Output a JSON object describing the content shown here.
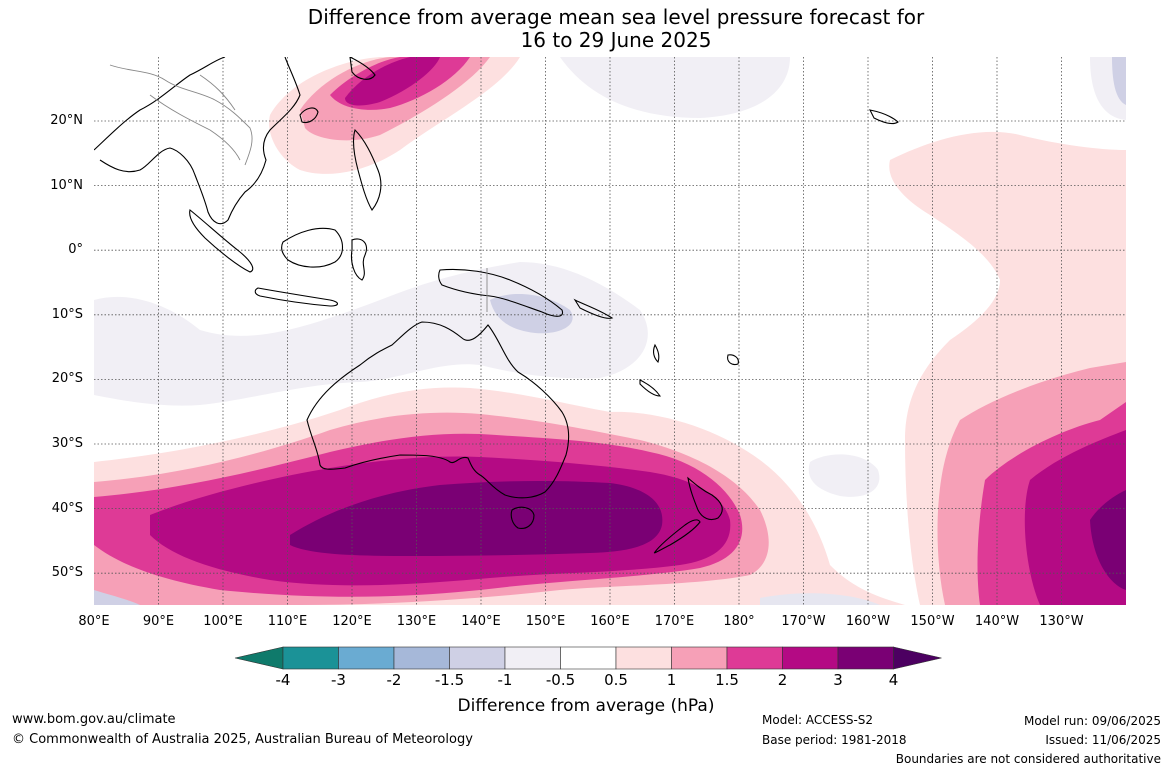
{
  "title_line1": "Difference from average mean sea level pressure forecast for",
  "title_line2": "16 to 29 June 2025",
  "lat_labels": [
    "20°N",
    "10°N",
    "0°",
    "10°S",
    "20°S",
    "30°S",
    "40°S",
    "50°S"
  ],
  "lon_labels": [
    "80°E",
    "90°E",
    "100°E",
    "110°E",
    "120°E",
    "130°E",
    "140°E",
    "150°E",
    "160°E",
    "170°E",
    "180°",
    "170°W",
    "160°W",
    "150°W",
    "140°W",
    "130°W"
  ],
  "colorbar": {
    "labels": [
      "-4",
      "-3",
      "-2",
      "-1.5",
      "-1",
      "-0.5",
      "0.5",
      "1",
      "1.5",
      "2",
      "3",
      "4"
    ],
    "colors": [
      "#0f7a6b",
      "#1b9297",
      "#6aabd2",
      "#a6b8d9",
      "#cfd0e5",
      "#f1eff5",
      "#ffffff",
      "#fde0e0",
      "#f6a0b7",
      "#de3a96",
      "#b40a84",
      "#7a0074",
      "#4c0061"
    ],
    "title": "Difference from average (hPa)"
  },
  "footer": {
    "website": "www.bom.gov.au/climate",
    "copyright": "© Commonwealth of Australia 2025, Australian Bureau of Meteorology",
    "model": "Model: ACCESS-S2",
    "base_period": "Base period: 1981-2018",
    "model_run": "Model run: 09/06/2025",
    "issued": "Issued: 11/06/2025",
    "disclaimer": "Boundaries are not considered authoritative"
  },
  "legend_icons": [
    "coastline",
    "country-boundary",
    "gridline"
  ]
}
